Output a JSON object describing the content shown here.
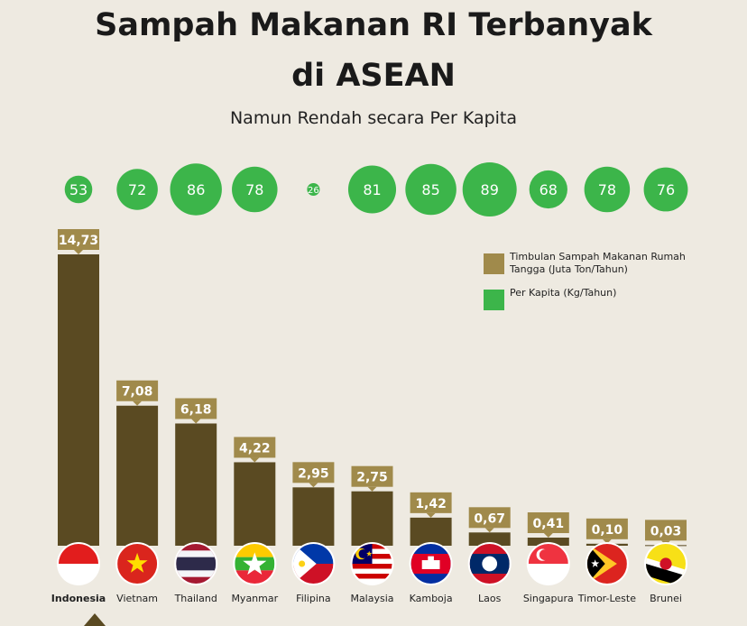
{
  "header": {
    "title_line1": "Sampah Makanan RI Terbanyak",
    "title_line2": "di ASEAN",
    "subtitle": "Namun Rendah secara Per Kapita"
  },
  "legend": {
    "items": [
      {
        "label": "Timbulan Sampah Makanan Rumah Tangga (Juta Ton/Tahun)",
        "color": "#a08a4b"
      },
      {
        "label": "Per Kapita (Kg/Tahun)",
        "color": "#3cb54a"
      }
    ]
  },
  "chart_data": {
    "type": "bar",
    "title": "Sampah Makanan RI Terbanyak di ASEAN",
    "subtitle": "Namun Rendah secara Per Kapita",
    "categories": [
      "Indonesia",
      "Vietnam",
      "Thailand",
      "Myanmar",
      "Filipina",
      "Malaysia",
      "Kamboja",
      "Laos",
      "Singapura",
      "Timor-Leste",
      "Brunei"
    ],
    "series": [
      {
        "name": "Timbulan Sampah Makanan Rumah Tangga (Juta Ton/Tahun)",
        "color": "#5a4a22",
        "values": [
          14.73,
          7.08,
          6.18,
          4.22,
          2.95,
          2.75,
          1.42,
          0.67,
          0.41,
          0.1,
          0.03
        ],
        "labels": [
          "14,73",
          "7,08",
          "6,18",
          "4,22",
          "2,95",
          "2,75",
          "1,42",
          "0,67",
          "0,41",
          "0,10",
          "0,03"
        ]
      },
      {
        "name": "Per Kapita (Kg/Tahun)",
        "color": "#3cb54a",
        "values": [
          53,
          72,
          86,
          78,
          26,
          81,
          85,
          89,
          68,
          78,
          76
        ],
        "labels": [
          "53",
          "72",
          "86",
          "78",
          "26",
          "81",
          "85",
          "89",
          "68",
          "78",
          "76"
        ]
      }
    ],
    "ylim": [
      0,
      14.73
    ],
    "grid": false,
    "legend_position": "right",
    "highlight_category": "Indonesia",
    "colors": {
      "bar": "#5a4a22",
      "label_box": "#a08a4b",
      "bubble": "#3cb54a",
      "background": "#eeeae1"
    },
    "flags": [
      "indonesia-flag-icon",
      "vietnam-flag-icon",
      "thailand-flag-icon",
      "myanmar-flag-icon",
      "philippines-flag-icon",
      "malaysia-flag-icon",
      "cambodia-flag-icon",
      "laos-flag-icon",
      "singapore-flag-icon",
      "timor-leste-flag-icon",
      "brunei-flag-icon"
    ]
  }
}
